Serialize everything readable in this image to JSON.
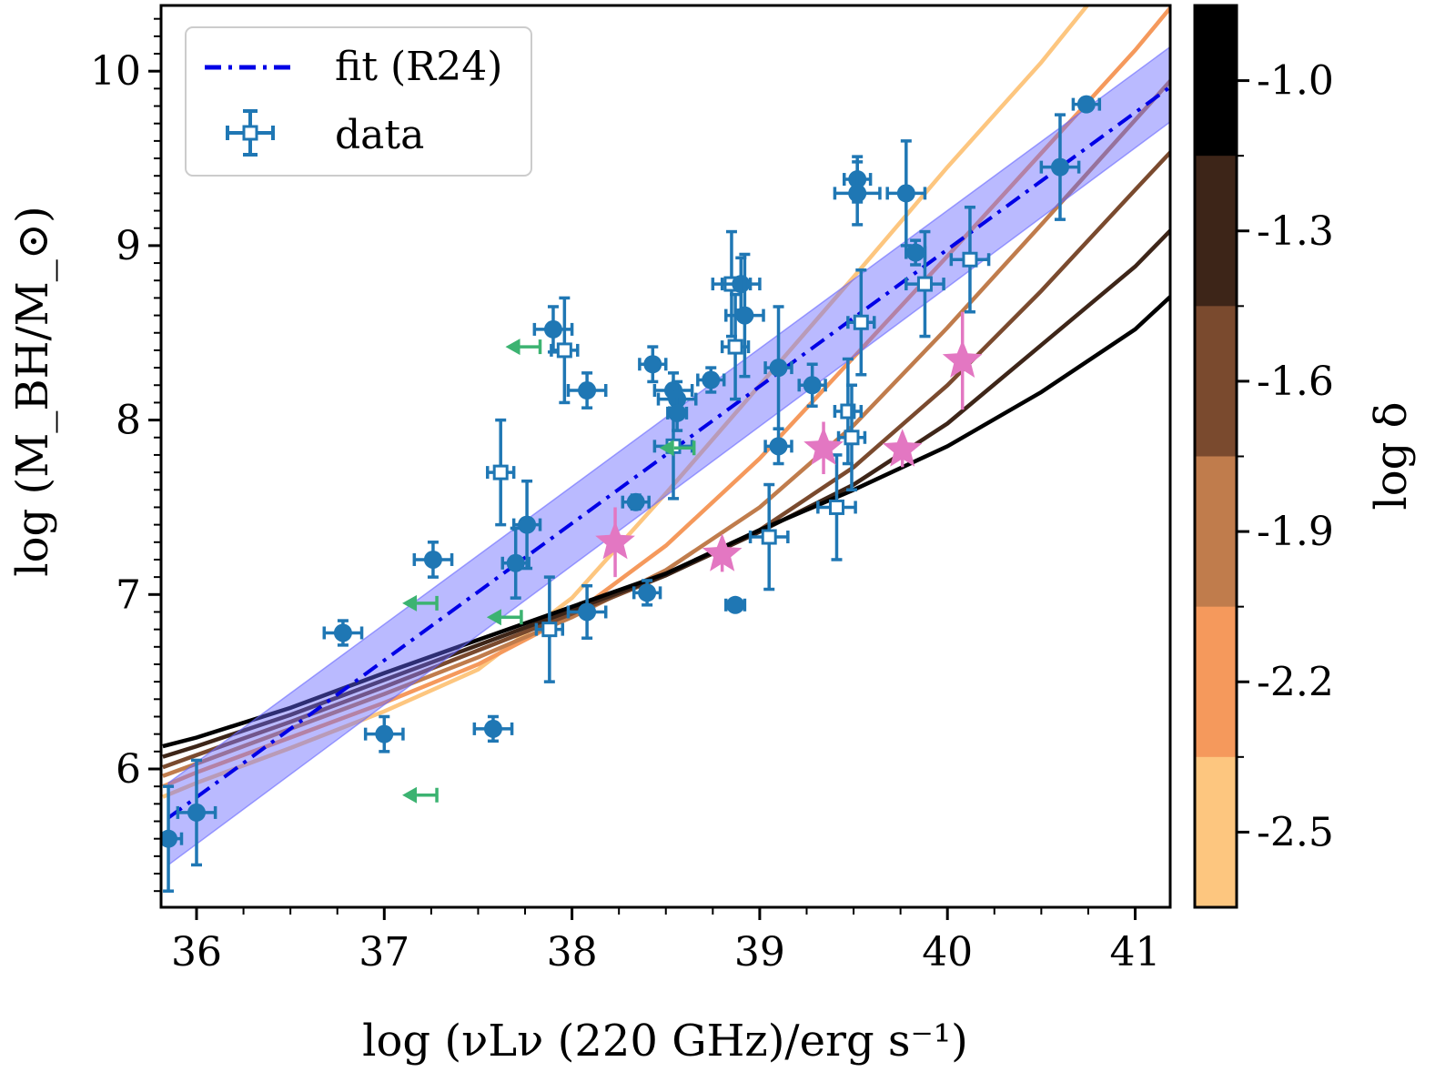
{
  "chart_data": {
    "type": "scatter",
    "xlabel": "log (νLν (220 GHz)/erg s⁻¹)",
    "ylabel": "log (M_BH/M_⊙)",
    "xlim": [
      35.82,
      41.2
    ],
    "ylim": [
      5.25,
      10.45
    ],
    "x_ticks": [
      "36",
      "37",
      "38",
      "39",
      "40",
      "41"
    ],
    "y_ticks": [
      "6",
      "7",
      "8",
      "9",
      "10"
    ],
    "legend": {
      "placement": "top-left",
      "entries": [
        {
          "label": "fit (R24)",
          "style": "dashdot",
          "color": "#0000e6"
        },
        {
          "label": "data",
          "style": "errorbar-open-square",
          "color": "#1f77b4"
        }
      ]
    },
    "fit": {
      "name": "fit (R24)",
      "color": "#0000e6",
      "band_color": "#6666ff",
      "x": [
        35.85,
        41.2
      ],
      "y": [
        5.72,
        9.92
      ],
      "band_lower": [
        5.45,
        9.72
      ],
      "band_upper": [
        5.92,
        10.15
      ]
    },
    "filled_points": [
      {
        "x": 35.85,
        "y": 5.6,
        "xerr": 0.07,
        "yerr": 0.3
      },
      {
        "x": 36.0,
        "y": 5.75,
        "xerr": 0.1,
        "yerr": 0.3
      },
      {
        "x": 36.78,
        "y": 6.78,
        "xerr": 0.1,
        "yerr": 0.07
      },
      {
        "x": 37.0,
        "y": 6.2,
        "xerr": 0.1,
        "yerr": 0.1
      },
      {
        "x": 37.26,
        "y": 7.2,
        "xerr": 0.1,
        "yerr": 0.1
      },
      {
        "x": 37.58,
        "y": 6.23,
        "xerr": 0.1,
        "yerr": 0.07
      },
      {
        "x": 37.7,
        "y": 7.18,
        "xerr": 0.07,
        "yerr": 0.2
      },
      {
        "x": 37.76,
        "y": 7.4,
        "xerr": 0.07,
        "yerr": 0.25
      },
      {
        "x": 37.9,
        "y": 8.52,
        "xerr": 0.1,
        "yerr": 0.13
      },
      {
        "x": 38.08,
        "y": 8.17,
        "xerr": 0.1,
        "yerr": 0.1
      },
      {
        "x": 38.08,
        "y": 6.9,
        "xerr": 0.1,
        "yerr": 0.15
      },
      {
        "x": 38.34,
        "y": 7.53,
        "xerr": 0.07,
        "yerr": 0.04
      },
      {
        "x": 38.4,
        "y": 7.01,
        "xerr": 0.07,
        "yerr": 0.07
      },
      {
        "x": 38.43,
        "y": 8.32,
        "xerr": 0.07,
        "yerr": 0.1
      },
      {
        "x": 38.54,
        "y": 8.17,
        "xerr": 0.1,
        "yerr": 0.1
      },
      {
        "x": 38.56,
        "y": 8.12,
        "xerr": 0.1,
        "yerr": 0.1
      },
      {
        "x": 38.56,
        "y": 8.04,
        "xerr": 0.05,
        "yerr": 0.1
      },
      {
        "x": 38.74,
        "y": 8.23,
        "xerr": 0.07,
        "yerr": 0.07
      },
      {
        "x": 38.87,
        "y": 6.94,
        "xerr": 0.05,
        "yerr": 0.03
      },
      {
        "x": 38.9,
        "y": 8.78,
        "xerr": 0.1,
        "yerr": 0.15
      },
      {
        "x": 38.92,
        "y": 8.6,
        "xerr": 0.1,
        "yerr": 0.35
      },
      {
        "x": 39.1,
        "y": 8.3,
        "xerr": 0.07,
        "yerr": 0.35
      },
      {
        "x": 39.1,
        "y": 7.85,
        "xerr": 0.07,
        "yerr": 0.1
      },
      {
        "x": 39.28,
        "y": 8.2,
        "xerr": 0.07,
        "yerr": 0.12
      },
      {
        "x": 39.52,
        "y": 9.38,
        "xerr": 0.07,
        "yerr": 0.13
      },
      {
        "x": 39.52,
        "y": 9.3,
        "xerr": 0.12,
        "yerr": 0.18
      },
      {
        "x": 39.78,
        "y": 9.3,
        "xerr": 0.1,
        "yerr": 0.3
      },
      {
        "x": 39.83,
        "y": 8.96,
        "xerr": 0.05,
        "yerr": 0.07
      },
      {
        "x": 40.6,
        "y": 9.45,
        "xerr": 0.1,
        "yerr": 0.3
      },
      {
        "x": 40.74,
        "y": 9.81,
        "xerr": 0.07,
        "yerr": 0.03
      }
    ],
    "open_square_points": [
      {
        "x": 37.62,
        "y": 7.7,
        "xerr": 0.07,
        "yerr": 0.3
      },
      {
        "x": 37.88,
        "y": 6.8,
        "xerr": 0.07,
        "yerr": 0.3
      },
      {
        "x": 37.96,
        "y": 8.4,
        "xerr": 0.07,
        "yerr": 0.3
      },
      {
        "x": 38.54,
        "y": 7.85,
        "xerr": 0.1,
        "yerr": 0.3
      },
      {
        "x": 38.85,
        "y": 8.78,
        "xerr": 0.1,
        "yerr": 0.3
      },
      {
        "x": 38.87,
        "y": 8.42,
        "xerr": 0.07,
        "yerr": 0.3
      },
      {
        "x": 39.05,
        "y": 7.33,
        "xerr": 0.1,
        "yerr": 0.3
      },
      {
        "x": 39.41,
        "y": 7.5,
        "xerr": 0.1,
        "yerr": 0.3
      },
      {
        "x": 39.47,
        "y": 8.05,
        "xerr": 0.07,
        "yerr": 0.3
      },
      {
        "x": 39.49,
        "y": 7.9,
        "xerr": 0.07,
        "yerr": 0.3
      },
      {
        "x": 39.54,
        "y": 8.56,
        "xerr": 0.07,
        "yerr": 0.3
      },
      {
        "x": 39.88,
        "y": 8.78,
        "xerr": 0.1,
        "yerr": 0.3
      },
      {
        "x": 40.12,
        "y": 8.92,
        "xerr": 0.1,
        "yerr": 0.3
      }
    ],
    "upper_limits": [
      {
        "x": 37.28,
        "y": 6.95
      },
      {
        "x": 37.28,
        "y": 5.85
      },
      {
        "x": 37.73,
        "y": 6.87
      },
      {
        "x": 37.83,
        "y": 8.42
      },
      {
        "x": 38.65,
        "y": 7.84
      }
    ],
    "star_points": [
      {
        "x": 38.23,
        "y": 7.3,
        "yerr": 0.2
      },
      {
        "x": 38.8,
        "y": 7.23,
        "yerr": 0.1
      },
      {
        "x": 39.34,
        "y": 7.84,
        "yerr": 0.15
      },
      {
        "x": 39.76,
        "y": 7.83,
        "yerr": 0.1
      },
      {
        "x": 40.08,
        "y": 8.34,
        "yerr": 0.28
      }
    ],
    "model_curves": [
      {
        "log_delta": -1.0,
        "color": "#000000",
        "x_ticks": [
          35.82,
          36.0,
          36.5,
          37.0,
          37.5,
          38.0,
          38.5,
          39.0,
          39.5,
          40.0,
          40.5,
          41.0,
          41.2
        ],
        "y": [
          6.13,
          6.18,
          6.35,
          6.55,
          6.74,
          6.93,
          7.12,
          7.37,
          7.6,
          7.85,
          8.16,
          8.52,
          8.72
        ]
      },
      {
        "log_delta": -1.3,
        "color": "#3d2518",
        "x": [
          35.82,
          36.0,
          36.5,
          37.0,
          37.5,
          38.0,
          38.5,
          39.0,
          39.5,
          40.0,
          40.5,
          41.0,
          41.2
        ],
        "y": [
          6.07,
          6.13,
          6.31,
          6.51,
          6.71,
          6.91,
          7.11,
          7.36,
          7.63,
          7.98,
          8.43,
          8.88,
          9.1
        ]
      },
      {
        "log_delta": -1.6,
        "color": "#7a4a2e",
        "x": [
          35.82,
          36.0,
          36.5,
          37.0,
          37.5,
          38.0,
          38.5,
          39.0,
          39.5,
          40.0,
          40.5,
          41.0,
          41.2
        ],
        "y": [
          6.01,
          6.08,
          6.27,
          6.47,
          6.68,
          6.89,
          7.11,
          7.37,
          7.73,
          8.2,
          8.74,
          9.32,
          9.55
        ]
      },
      {
        "log_delta": -1.9,
        "color": "#c07c4c",
        "x": [
          35.82,
          36.0,
          36.5,
          37.0,
          37.5,
          38.0,
          38.5,
          39.0,
          39.5,
          40.0,
          40.5,
          41.0,
          41.2
        ],
        "y": [
          5.96,
          6.03,
          6.23,
          6.43,
          6.64,
          6.87,
          7.14,
          7.5,
          7.97,
          8.53,
          9.12,
          9.72,
          9.96
        ]
      },
      {
        "log_delta": -2.2,
        "color": "#f5995c",
        "x": [
          35.82,
          36.0,
          36.5,
          37.0,
          37.5,
          38.0,
          38.5,
          39.0,
          39.5,
          40.0,
          40.5,
          41.0,
          41.2
        ],
        "y": [
          5.9,
          5.98,
          6.18,
          6.38,
          6.6,
          6.88,
          7.28,
          7.78,
          8.36,
          8.94,
          9.53,
          10.12,
          10.38
        ]
      },
      {
        "log_delta": -2.5,
        "color": "#fdc67f",
        "x": [
          35.82,
          36.0,
          36.5,
          37.0,
          37.5,
          38.0,
          38.5,
          39.0,
          39.5,
          40.0,
          40.5,
          40.8
        ],
        "y": [
          5.84,
          5.92,
          6.12,
          6.33,
          6.57,
          6.98,
          7.58,
          8.2,
          8.82,
          9.45,
          10.05,
          10.45
        ]
      }
    ],
    "colorbar": {
      "label": "log δ",
      "ticks": [
        "-1.0",
        "-1.3",
        "-1.6",
        "-1.9",
        "-2.2",
        "-2.5"
      ],
      "colors_top_to_bottom": [
        "#000000",
        "#3d2518",
        "#7a4a2e",
        "#c07c4c",
        "#f5995c",
        "#fdc67f"
      ]
    }
  }
}
